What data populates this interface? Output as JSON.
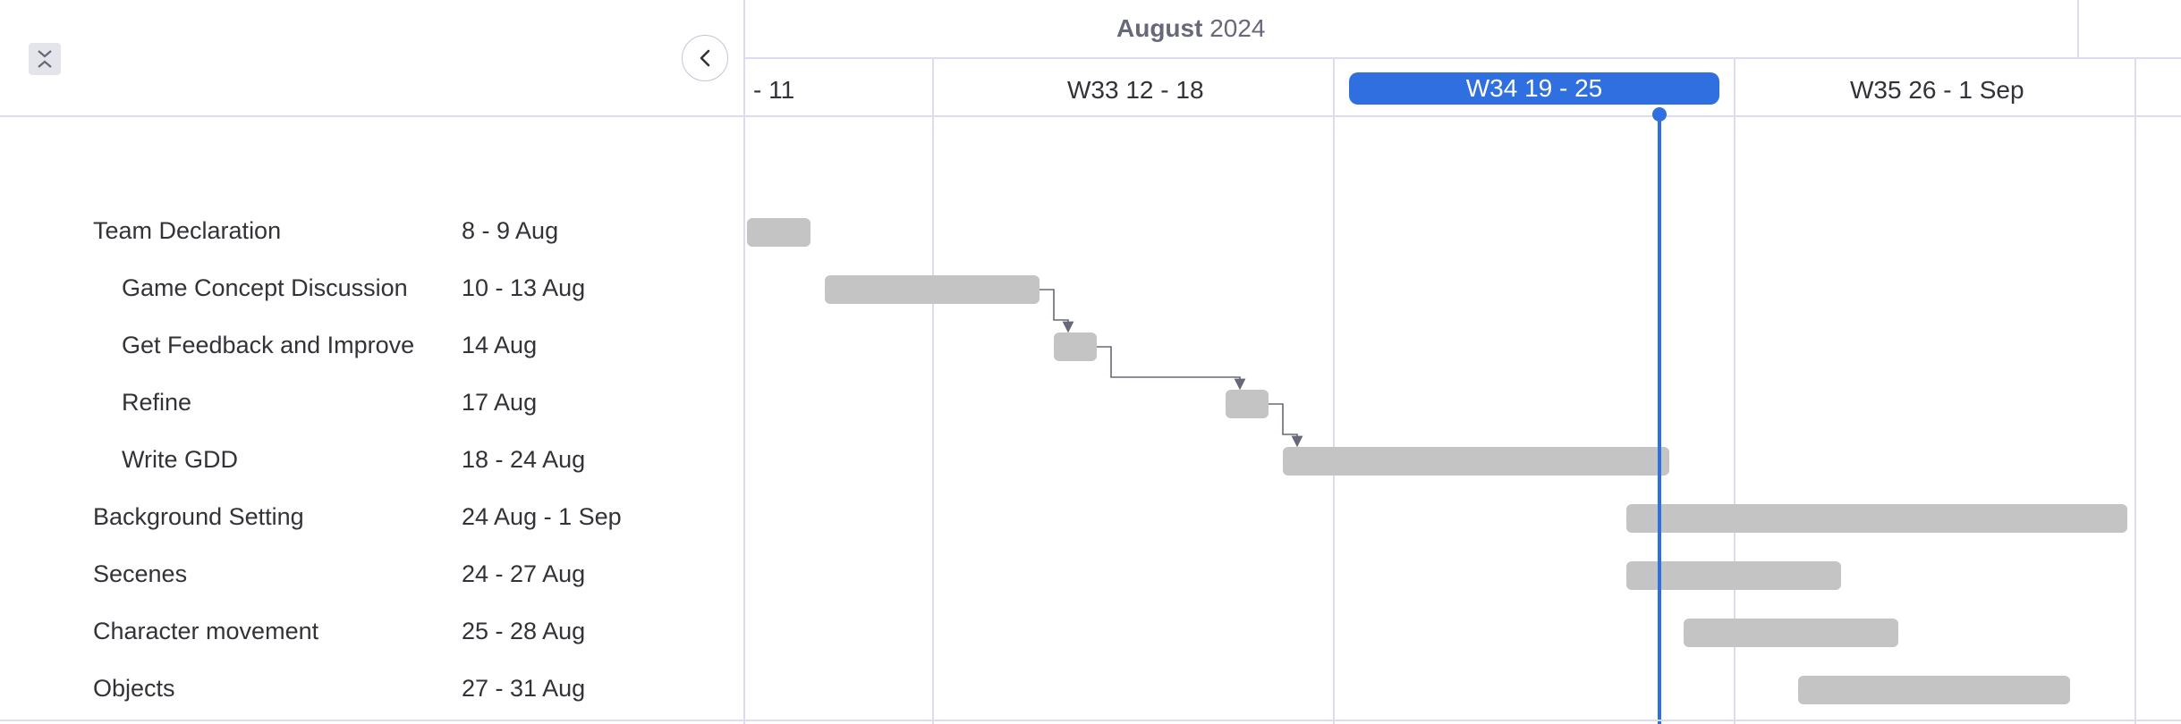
{
  "month_header": {
    "month": "August",
    "year": "2024"
  },
  "weeks": [
    {
      "label": "- 11"
    },
    {
      "label": "W33 12 - 18"
    },
    {
      "label": "W34 19 - 25",
      "current": true
    },
    {
      "label": "W35 26 - 1 Sep"
    }
  ],
  "tasks": [
    {
      "name": "Team Declaration",
      "dates": "8 - 9 Aug"
    },
    {
      "name": "Game Concept Discussion",
      "dates": "10 - 13 Aug"
    },
    {
      "name": "Get Feedback and Improve",
      "dates": "14 Aug"
    },
    {
      "name": "Refine",
      "dates": "17 Aug"
    },
    {
      "name": "Write GDD",
      "dates": "18 - 24 Aug"
    },
    {
      "name": "Background Setting",
      "dates": "24 Aug - 1 Sep"
    },
    {
      "name": "Secenes",
      "dates": "24 - 27 Aug"
    },
    {
      "name": "Character movement",
      "dates": "25 - 28 Aug"
    },
    {
      "name": "Objects",
      "dates": "27 - 31 Aug"
    }
  ],
  "icons": {
    "collapse": "collapse-icon",
    "back": "chevron-left-icon"
  },
  "colors": {
    "accent": "#2f6fe0",
    "bar": "#c4c4c4",
    "grid": "#dcdcf0",
    "dependency": "#676879"
  }
}
